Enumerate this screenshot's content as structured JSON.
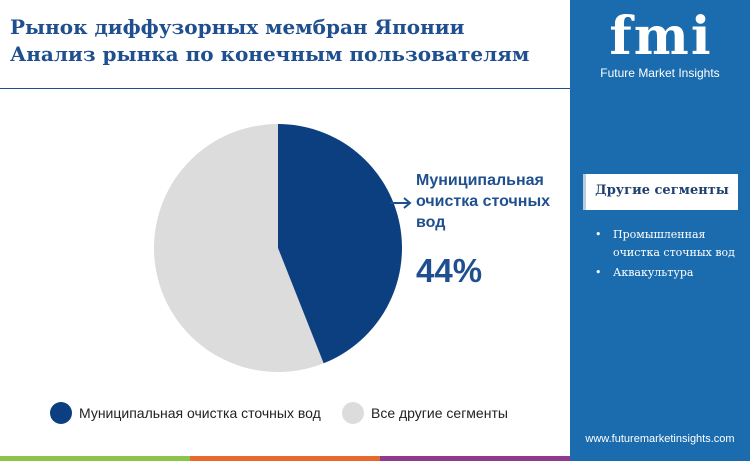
{
  "title_lines": [
    "Рынок диффузорных мембран Японии",
    "Анализ рынка по конечным пользователям"
  ],
  "brand": {
    "logo": "fmi",
    "name": "Future Market Insights",
    "url": "www.futuremarketinsights.com"
  },
  "side_panel": {
    "heading": "Другие сегменты",
    "items": [
      "Промышленная очистка сточных вод",
      "Аквакультура"
    ]
  },
  "chart_data": {
    "type": "pie",
    "title": "Рынок диффузорных мембран Японии — Анализ рынка по конечным пользователям",
    "slices": [
      {
        "label": "Муниципальная очистка сточных вод",
        "value": 44,
        "color": "#0c3f7f"
      },
      {
        "label": "Все другие сегменты",
        "value": 56,
        "color": "#dcdcdc"
      }
    ],
    "callout": {
      "label": "Муниципальная очистка сточных вод",
      "value_label": "44%"
    },
    "legend_position": "bottom"
  },
  "colors": {
    "bottom_bar": [
      "#8cc34a",
      "#e8692e",
      "#8d3a8f"
    ]
  }
}
